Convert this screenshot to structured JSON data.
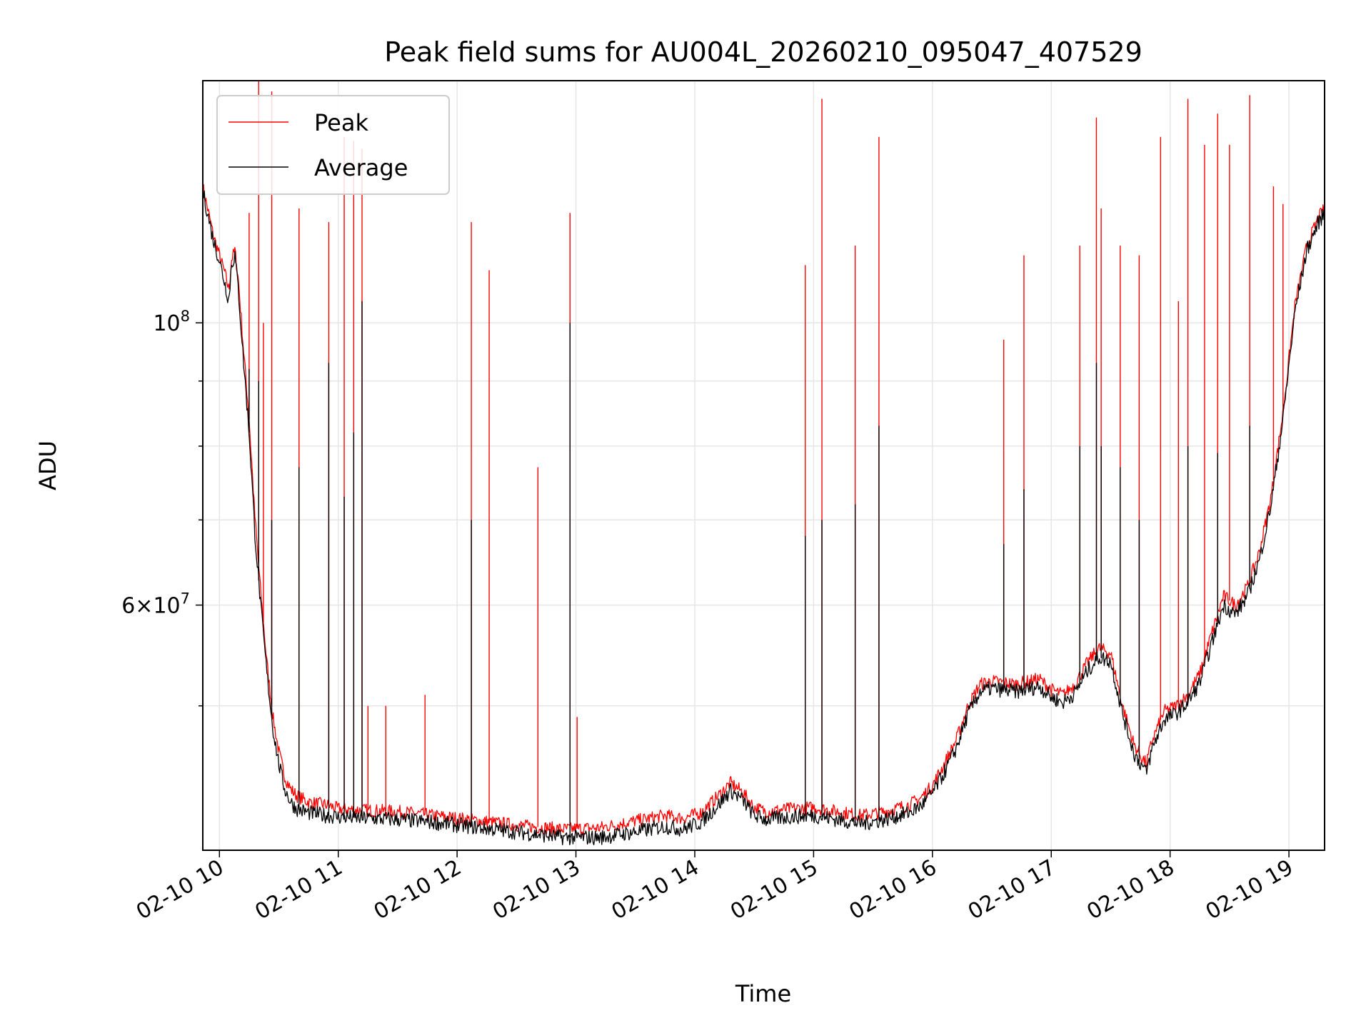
{
  "chart_data": {
    "type": "line",
    "title": "Peak field sums for AU004L_20260210_095047_407529",
    "xlabel": "Time",
    "ylabel": "ADU",
    "x_unit": "hour of 2026-02-10",
    "xlim": [
      9.86,
      19.3
    ],
    "ylim": [
      38500000,
      155000000
    ],
    "yscale": "log",
    "x_tick_labels": [
      "02-10 10",
      "02-10 11",
      "02-10 12",
      "02-10 13",
      "02-10 14",
      "02-10 15",
      "02-10 16",
      "02-10 17",
      "02-10 18",
      "02-10 19"
    ],
    "x_tick_values": [
      10,
      11,
      12,
      13,
      14,
      15,
      16,
      17,
      18,
      19
    ],
    "y_major_ticks": [
      {
        "value": 100000000,
        "label": "10^8"
      },
      {
        "value": 60000000,
        "label": "6×10^7"
      }
    ],
    "y_minor_ticks": [
      50000000,
      70000000,
      80000000,
      90000000
    ],
    "grid": true,
    "legend_position": "top-left",
    "colors": {
      "peak": "#ff0000",
      "average": "#000000",
      "grid": "#e6e6e6"
    },
    "series": [
      {
        "name": "Peak",
        "color": "#ff0000",
        "baseline": [
          [
            9.86,
            128000000
          ],
          [
            9.9,
            123000000
          ],
          [
            9.95,
            117000000
          ],
          [
            10.0,
            113000000
          ],
          [
            10.05,
            109000000
          ],
          [
            10.08,
            106000000
          ],
          [
            10.1,
            112000000
          ],
          [
            10.13,
            114000000
          ],
          [
            10.16,
            108000000
          ],
          [
            10.2,
            96000000
          ],
          [
            10.25,
            84000000
          ],
          [
            10.3,
            70000000
          ],
          [
            10.35,
            61000000
          ],
          [
            10.4,
            54000000
          ],
          [
            10.45,
            49000000
          ],
          [
            10.5,
            46000000
          ],
          [
            10.55,
            44000000
          ],
          [
            10.6,
            43000000
          ],
          [
            10.65,
            42500000
          ],
          [
            10.75,
            42000000
          ],
          [
            10.9,
            41800000
          ],
          [
            11.0,
            41500000
          ],
          [
            11.2,
            41400000
          ],
          [
            11.5,
            41300000
          ],
          [
            11.8,
            41000000
          ],
          [
            12.0,
            40800000
          ],
          [
            12.3,
            40500000
          ],
          [
            12.6,
            40200000
          ],
          [
            12.9,
            40000000
          ],
          [
            13.2,
            40100000
          ],
          [
            13.5,
            40600000
          ],
          [
            13.75,
            41000000
          ],
          [
            13.9,
            40800000
          ],
          [
            14.05,
            41200000
          ],
          [
            14.2,
            42500000
          ],
          [
            14.3,
            43500000
          ],
          [
            14.4,
            42800000
          ],
          [
            14.5,
            41600000
          ],
          [
            14.6,
            41300000
          ],
          [
            14.8,
            41500000
          ],
          [
            15.0,
            41600000
          ],
          [
            15.2,
            41300000
          ],
          [
            15.4,
            41000000
          ],
          [
            15.6,
            41300000
          ],
          [
            15.8,
            41800000
          ],
          [
            15.9,
            42300000
          ],
          [
            16.0,
            43300000
          ],
          [
            16.1,
            45000000
          ],
          [
            16.2,
            47000000
          ],
          [
            16.3,
            50000000
          ],
          [
            16.4,
            52000000
          ],
          [
            16.5,
            52300000
          ],
          [
            16.7,
            52000000
          ],
          [
            16.9,
            52500000
          ],
          [
            17.0,
            51500000
          ],
          [
            17.1,
            51000000
          ],
          [
            17.2,
            52000000
          ],
          [
            17.3,
            54000000
          ],
          [
            17.4,
            55500000
          ],
          [
            17.5,
            55000000
          ],
          [
            17.6,
            50000000
          ],
          [
            17.7,
            46500000
          ],
          [
            17.8,
            45000000
          ],
          [
            17.85,
            47000000
          ],
          [
            17.95,
            49500000
          ],
          [
            18.05,
            50000000
          ],
          [
            18.15,
            51000000
          ],
          [
            18.25,
            53000000
          ],
          [
            18.35,
            57000000
          ],
          [
            18.45,
            61000000
          ],
          [
            18.55,
            60000000
          ],
          [
            18.65,
            62000000
          ],
          [
            18.75,
            66000000
          ],
          [
            18.85,
            73000000
          ],
          [
            18.95,
            85000000
          ],
          [
            19.05,
            103000000
          ],
          [
            19.15,
            115000000
          ],
          [
            19.25,
            121000000
          ],
          [
            19.3,
            123000000
          ]
        ],
        "spikes": [
          [
            10.25,
            122000000
          ],
          [
            10.33,
            160000000
          ],
          [
            10.37,
            100000000
          ],
          [
            10.44,
            152000000
          ],
          [
            10.67,
            123000000
          ],
          [
            10.92,
            120000000
          ],
          [
            11.05,
            140000000
          ],
          [
            11.13,
            139000000
          ],
          [
            11.2,
            137000000
          ],
          [
            11.25,
            50000000
          ],
          [
            11.4,
            50000000
          ],
          [
            11.73,
            51000000
          ],
          [
            12.12,
            120000000
          ],
          [
            12.27,
            110000000
          ],
          [
            12.68,
            77000000
          ],
          [
            12.95,
            122000000
          ],
          [
            13.01,
            49000000
          ],
          [
            14.93,
            111000000
          ],
          [
            15.07,
            150000000
          ],
          [
            15.35,
            115000000
          ],
          [
            15.55,
            140000000
          ],
          [
            16.6,
            97000000
          ],
          [
            16.77,
            113000000
          ],
          [
            17.24,
            115000000
          ],
          [
            17.38,
            145000000
          ],
          [
            17.42,
            123000000
          ],
          [
            17.58,
            115000000
          ],
          [
            17.74,
            113000000
          ],
          [
            17.92,
            140000000
          ],
          [
            18.07,
            104000000
          ],
          [
            18.15,
            150000000
          ],
          [
            18.29,
            138000000
          ],
          [
            18.4,
            146000000
          ],
          [
            18.5,
            138000000
          ],
          [
            18.67,
            151000000
          ],
          [
            18.87,
            128000000
          ],
          [
            18.95,
            124000000
          ]
        ]
      },
      {
        "name": "Average",
        "color": "#000000",
        "baseline": [
          [
            9.86,
            127000000
          ],
          [
            9.9,
            122000000
          ],
          [
            9.95,
            116000000
          ],
          [
            10.0,
            112000000
          ],
          [
            10.05,
            107000000
          ],
          [
            10.08,
            104000000
          ],
          [
            10.1,
            111000000
          ],
          [
            10.13,
            113000000
          ],
          [
            10.16,
            106000000
          ],
          [
            10.2,
            94000000
          ],
          [
            10.25,
            82000000
          ],
          [
            10.3,
            68000000
          ],
          [
            10.35,
            59500000
          ],
          [
            10.4,
            53000000
          ],
          [
            10.45,
            48000000
          ],
          [
            10.5,
            45000000
          ],
          [
            10.55,
            43000000
          ],
          [
            10.6,
            42000000
          ],
          [
            10.65,
            41500000
          ],
          [
            10.75,
            41200000
          ],
          [
            10.9,
            41000000
          ],
          [
            11.0,
            40900000
          ],
          [
            11.2,
            40800000
          ],
          [
            11.5,
            40700000
          ],
          [
            11.8,
            40500000
          ],
          [
            12.0,
            40300000
          ],
          [
            12.3,
            40000000
          ],
          [
            12.6,
            39700000
          ],
          [
            12.9,
            39400000
          ],
          [
            13.2,
            39400000
          ],
          [
            13.5,
            39800000
          ],
          [
            13.75,
            40200000
          ],
          [
            13.9,
            40000000
          ],
          [
            14.05,
            40500000
          ],
          [
            14.2,
            41800000
          ],
          [
            14.3,
            42900000
          ],
          [
            14.4,
            42200000
          ],
          [
            14.5,
            41000000
          ],
          [
            14.6,
            40700000
          ],
          [
            14.8,
            40900000
          ],
          [
            15.0,
            41000000
          ],
          [
            15.2,
            40700000
          ],
          [
            15.4,
            40400000
          ],
          [
            15.6,
            40700000
          ],
          [
            15.8,
            41200000
          ],
          [
            15.9,
            41700000
          ],
          [
            16.0,
            42700000
          ],
          [
            16.1,
            44300000
          ],
          [
            16.2,
            46300000
          ],
          [
            16.3,
            49300000
          ],
          [
            16.4,
            51300000
          ],
          [
            16.5,
            51600000
          ],
          [
            16.7,
            51300000
          ],
          [
            16.9,
            51800000
          ],
          [
            17.0,
            50800000
          ],
          [
            17.1,
            50300000
          ],
          [
            17.2,
            51200000
          ],
          [
            17.3,
            53200000
          ],
          [
            17.4,
            54600000
          ],
          [
            17.5,
            54200000
          ],
          [
            17.6,
            49300000
          ],
          [
            17.7,
            45800000
          ],
          [
            17.8,
            44300000
          ],
          [
            17.85,
            46300000
          ],
          [
            17.95,
            48800000
          ],
          [
            18.05,
            49300000
          ],
          [
            18.15,
            50300000
          ],
          [
            18.25,
            52200000
          ],
          [
            18.35,
            56000000
          ],
          [
            18.45,
            60000000
          ],
          [
            18.55,
            59000000
          ],
          [
            18.65,
            61000000
          ],
          [
            18.75,
            65000000
          ],
          [
            18.85,
            72000000
          ],
          [
            18.95,
            84000000
          ],
          [
            19.05,
            102000000
          ],
          [
            19.15,
            114000000
          ],
          [
            19.25,
            120000000
          ],
          [
            19.3,
            122000000
          ]
        ],
        "spikes": [
          [
            10.25,
            92000000
          ],
          [
            10.33,
            90000000
          ],
          [
            10.44,
            70000000
          ],
          [
            10.67,
            77000000
          ],
          [
            10.92,
            93000000
          ],
          [
            11.05,
            73000000
          ],
          [
            11.13,
            82000000
          ],
          [
            11.2,
            104000000
          ],
          [
            12.12,
            70000000
          ],
          [
            12.95,
            100000000
          ],
          [
            14.93,
            68000000
          ],
          [
            15.07,
            70000000
          ],
          [
            15.35,
            72000000
          ],
          [
            15.55,
            83000000
          ],
          [
            16.6,
            67000000
          ],
          [
            16.77,
            74000000
          ],
          [
            17.24,
            80000000
          ],
          [
            17.38,
            93000000
          ],
          [
            17.42,
            80000000
          ],
          [
            17.58,
            77000000
          ],
          [
            17.74,
            70000000
          ],
          [
            18.15,
            80000000
          ],
          [
            18.4,
            79000000
          ],
          [
            18.67,
            83000000
          ]
        ]
      }
    ]
  }
}
